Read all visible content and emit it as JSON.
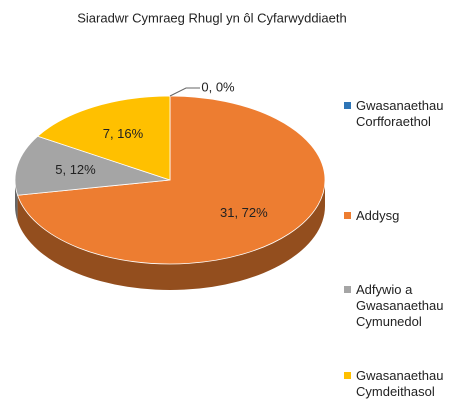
{
  "chart_data": {
    "type": "pie3d",
    "title": "Siaradwr Cymraeg Rhugl yn ôl  Cyfarwyddiaeth",
    "categories": [
      "Gwasanaethau Corfforaethol",
      "Addysg",
      "Adfywio a Gwasanaethau Cymunedol",
      "Gwasanaethau Cymdeithasol"
    ],
    "values": [
      0,
      31,
      5,
      7
    ],
    "value_labels": [
      "0, 0%",
      "31, 72%",
      "5, 12%",
      "7, 16%"
    ],
    "colors": [
      "#2e75b6",
      "#ed7d31",
      "#a5a5a5",
      "#ffc000"
    ],
    "legend": "right"
  }
}
